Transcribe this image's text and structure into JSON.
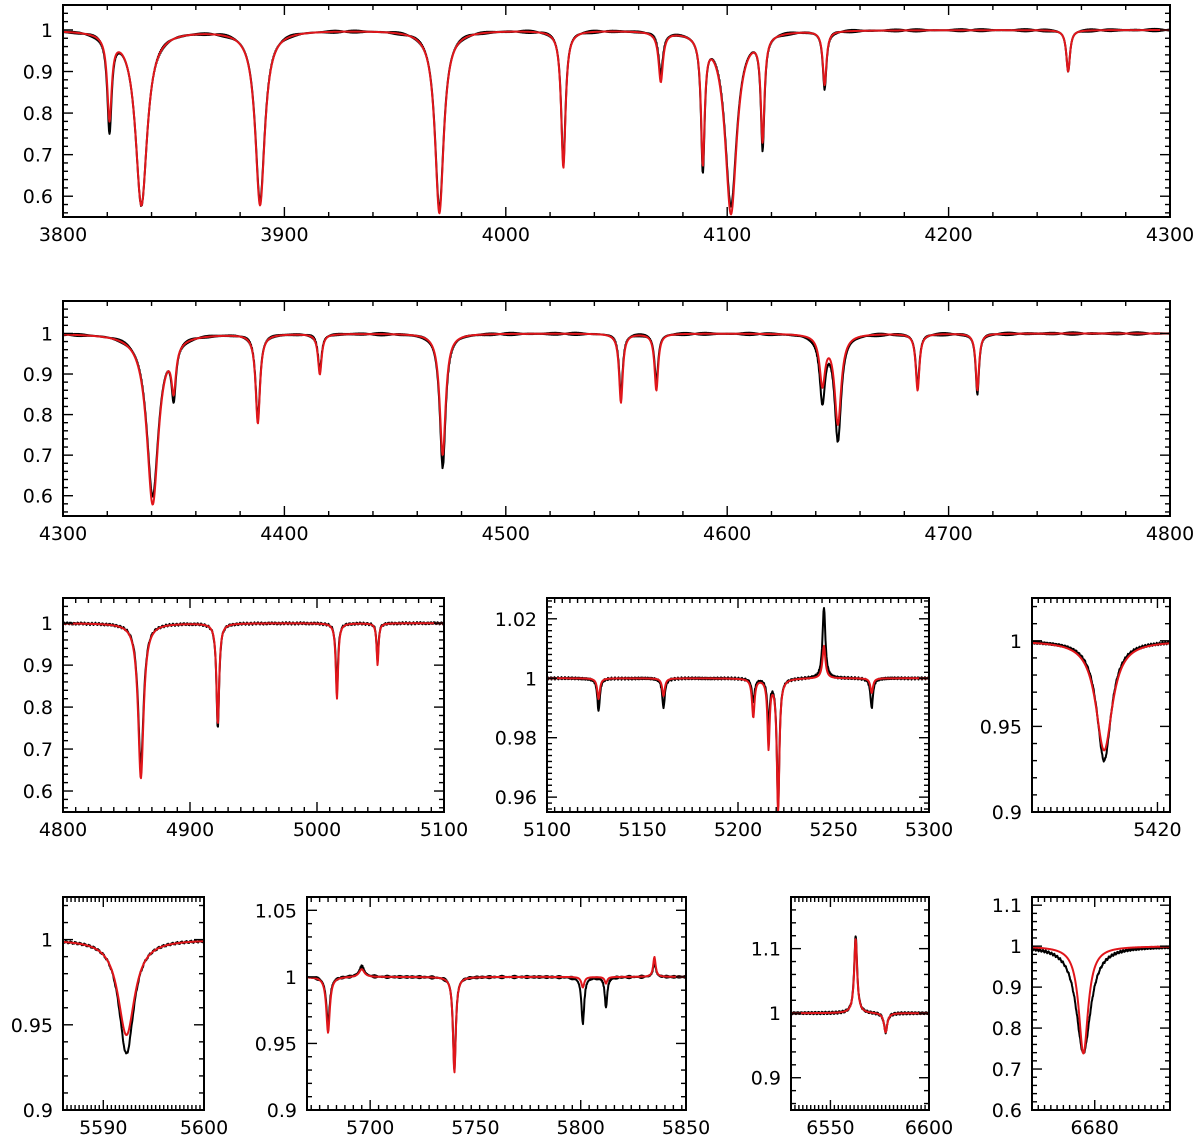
{
  "chart_data": [
    {
      "type": "line",
      "xlim": [
        3800,
        4300
      ],
      "ylim": [
        0.55,
        1.06
      ],
      "xticks": [
        "3800",
        "3900",
        "4000",
        "4100",
        "4200",
        "4300"
      ],
      "yticks": [
        "0.6",
        "0.7",
        "0.8",
        "0.9",
        "1"
      ],
      "series": [
        {
          "color": "#000000",
          "lines": [
            [
              3821,
              0.77,
              1.2
            ],
            [
              3835.4,
              0.58,
              3.2
            ],
            [
              3889,
              0.59,
              2.6
            ],
            [
              3970,
              0.57,
              2.4
            ],
            [
              4026,
              0.68,
              1.2
            ],
            [
              4070,
              0.9,
              1.2
            ],
            [
              4089,
              0.68,
              1.0
            ],
            [
              4101.7,
              0.58,
              3.2
            ],
            [
              4116,
              0.73,
              1.0
            ],
            [
              4144,
              0.86,
              1.0
            ],
            [
              4254,
              0.9,
              1.0
            ]
          ]
        },
        {
          "color": "#e0161b",
          "lines": [
            [
              3821,
              0.8,
              1.2
            ],
            [
              3835.4,
              0.58,
              3.2
            ],
            [
              3889,
              0.58,
              2.6
            ],
            [
              3970,
              0.56,
              2.4
            ],
            [
              4026,
              0.67,
              1.2
            ],
            [
              4070,
              0.88,
              1.2
            ],
            [
              4089,
              0.7,
              1.0
            ],
            [
              4101.7,
              0.56,
              3.2
            ],
            [
              4116,
              0.75,
              1.0
            ],
            [
              4144,
              0.87,
              1.0
            ],
            [
              4254,
              0.9,
              1.0
            ]
          ]
        }
      ]
    },
    {
      "type": "line",
      "xlim": [
        4300,
        4800
      ],
      "ylim": [
        0.55,
        1.08
      ],
      "xticks": [
        "4300",
        "4400",
        "4500",
        "4600",
        "4700",
        "4800"
      ],
      "yticks": [
        "0.6",
        "0.7",
        "0.8",
        "0.9",
        "1"
      ],
      "series": [
        {
          "color": "#000000",
          "lines": [
            [
              4340.5,
              0.6,
              3.2
            ],
            [
              4350,
              0.87,
              1.2
            ],
            [
              4388,
              0.79,
              1.2
            ],
            [
              4416,
              0.91,
              1.0
            ],
            [
              4471.5,
              0.67,
              1.6
            ],
            [
              4552,
              0.85,
              1.0
            ],
            [
              4568,
              0.88,
              1.0
            ],
            [
              4643,
              0.84,
              1.5
            ],
            [
              4650,
              0.74,
              1.8
            ],
            [
              4686,
              0.87,
              1.0
            ],
            [
              4713,
              0.85,
              0.9
            ]
          ]
        },
        {
          "color": "#e0161b",
          "lines": [
            [
              4340.5,
              0.58,
              3.2
            ],
            [
              4350,
              0.89,
              1.2
            ],
            [
              4388,
              0.78,
              1.2
            ],
            [
              4416,
              0.9,
              1.0
            ],
            [
              4471.5,
              0.7,
              1.6
            ],
            [
              4552,
              0.83,
              1.0
            ],
            [
              4568,
              0.86,
              1.0
            ],
            [
              4643,
              0.88,
              1.5
            ],
            [
              4650,
              0.78,
              1.8
            ],
            [
              4686,
              0.86,
              1.0
            ],
            [
              4713,
              0.86,
              0.9
            ]
          ]
        }
      ]
    },
    {
      "type": "line",
      "xlim": [
        4800,
        5100
      ],
      "ylim": [
        0.55,
        1.06
      ],
      "xticks": [
        "4800",
        "4900",
        "5000",
        "5100"
      ],
      "yticks": [
        "0.6",
        "0.7",
        "0.8",
        "0.9",
        "1"
      ],
      "series": [
        {
          "color": "#000000",
          "lines": [
            [
              4861.3,
              0.66,
              2.6
            ],
            [
              4921.9,
              0.75,
              1.3
            ],
            [
              5015.7,
              0.84,
              1.1
            ],
            [
              5047.7,
              0.91,
              0.9
            ]
          ]
        },
        {
          "color": "#e0161b",
          "lines": [
            [
              4861.3,
              0.63,
              2.6
            ],
            [
              4921.9,
              0.76,
              1.3
            ],
            [
              5015.7,
              0.82,
              1.1
            ],
            [
              5047.7,
              0.9,
              0.9
            ]
          ]
        }
      ]
    },
    {
      "type": "line",
      "xlim": [
        5100,
        5300
      ],
      "ylim": [
        0.955,
        1.027
      ],
      "xticks": [
        "5100",
        "5150",
        "5200",
        "5250",
        "5300"
      ],
      "yticks": [
        "0.96",
        "0.98",
        "1",
        "1.02"
      ],
      "series": [
        {
          "color": "#000000",
          "lines": [
            [
              5127,
              0.989,
              0.8
            ],
            [
              5161,
              0.99,
              0.8
            ],
            [
              5208,
              0.992,
              0.8
            ],
            [
              5216,
              0.984,
              0.7
            ],
            [
              5221,
              0.957,
              0.8
            ],
            [
              5245,
              1.024,
              0.9
            ],
            [
              5270,
              0.99,
              0.8
            ]
          ]
        },
        {
          "color": "#e0161b",
          "lines": [
            [
              5127,
              0.993,
              0.8
            ],
            [
              5161,
              0.994,
              0.8
            ],
            [
              5208,
              0.987,
              0.8
            ],
            [
              5216,
              0.977,
              0.7
            ],
            [
              5221,
              0.955,
              0.8
            ],
            [
              5245,
              1.011,
              0.9
            ],
            [
              5270,
              0.995,
              0.8
            ]
          ]
        }
      ]
    },
    {
      "type": "line",
      "xlim": [
        5400,
        5422
      ],
      "ylim": [
        0.9,
        1.025
      ],
      "xticks": [
        "5420"
      ],
      "yticks": [
        "0.9",
        "0.95",
        "1"
      ],
      "series": [
        {
          "color": "#000000",
          "lines": [
            [
              5411.5,
              0.93,
              1.4
            ]
          ]
        },
        {
          "color": "#e0161b",
          "lines": [
            [
              5411.5,
              0.936,
              1.6
            ]
          ]
        }
      ]
    },
    {
      "type": "line",
      "xlim": [
        5586,
        5600
      ],
      "ylim": [
        0.9,
        1.025
      ],
      "xticks": [
        "5590",
        "5600"
      ],
      "yticks": [
        "0.9",
        "0.95",
        "1"
      ],
      "series": [
        {
          "color": "#000000",
          "lines": [
            [
              5592.3,
              0.933,
              0.9
            ]
          ]
        },
        {
          "color": "#e0161b",
          "lines": [
            [
              5592.3,
              0.944,
              1.0
            ]
          ]
        }
      ]
    },
    {
      "type": "line",
      "xlim": [
        5670,
        5850
      ],
      "ylim": [
        0.9,
        1.06
      ],
      "xticks": [
        "5700",
        "5750",
        "5800",
        "5850"
      ],
      "yticks": [
        "0.9",
        "0.95",
        "1",
        "1.05"
      ],
      "series": [
        {
          "color": "#000000",
          "lines": [
            [
              5680,
              0.965,
              1.0
            ],
            [
              5696,
              1.008,
              1.5
            ],
            [
              5740,
              0.93,
              0.8
            ],
            [
              5801,
              0.965,
              0.8
            ],
            [
              5812,
              0.977,
              0.7
            ],
            [
              5835,
              1.012,
              0.7
            ]
          ]
        },
        {
          "color": "#e0161b",
          "lines": [
            [
              5680,
              0.958,
              1.0
            ],
            [
              5696,
              1.006,
              1.5
            ],
            [
              5740,
              0.928,
              0.8
            ],
            [
              5801,
              0.992,
              0.8
            ],
            [
              5812,
              0.995,
              0.7
            ],
            [
              5835,
              1.015,
              0.7
            ]
          ]
        }
      ]
    },
    {
      "type": "line",
      "xlim": [
        6530,
        6600
      ],
      "ylim": [
        0.85,
        1.18
      ],
      "xticks": [
        "6550",
        "6600"
      ],
      "yticks": [
        "0.9",
        "1",
        "1.1"
      ],
      "series": [
        {
          "color": "#000000",
          "lines": [
            [
              6562.8,
              1.12,
              0.9
            ],
            [
              6578,
              0.97,
              1.0
            ]
          ]
        },
        {
          "color": "#e0161b",
          "lines": [
            [
              6562.8,
              1.115,
              0.9
            ],
            [
              6578,
              0.97,
              1.0
            ]
          ]
        }
      ]
    },
    {
      "type": "line",
      "xlim": [
        6670,
        6692
      ],
      "ylim": [
        0.6,
        1.12
      ],
      "xticks": [
        "6680"
      ],
      "yticks": [
        "0.6",
        "0.7",
        "0.8",
        "0.9",
        "1",
        "1.1"
      ],
      "series": [
        {
          "color": "#000000",
          "lines": [
            [
              6678.2,
              0.74,
              1.4
            ]
          ]
        },
        {
          "color": "#e0161b",
          "lines": [
            [
              6678.2,
              0.738,
              0.9
            ]
          ]
        }
      ]
    }
  ]
}
